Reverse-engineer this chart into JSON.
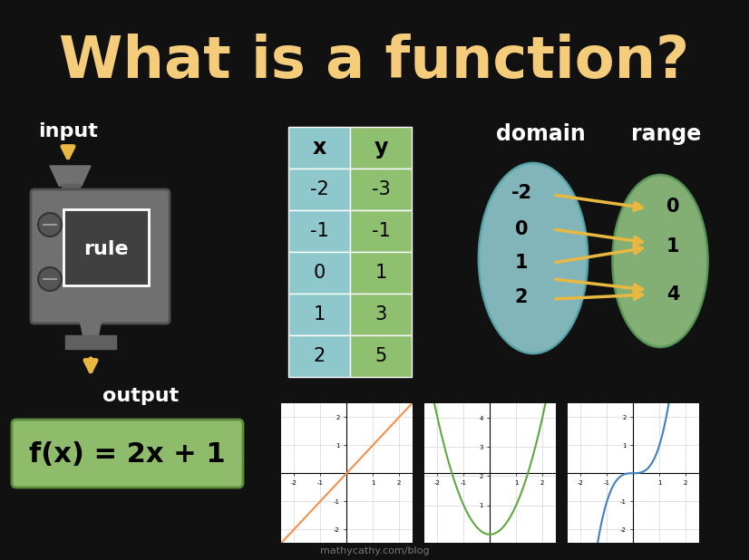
{
  "title": "What is a function?",
  "title_color": "#F5CC7A",
  "bg_color": "#111111",
  "table_x_vals": [
    "-2",
    "-1",
    "0",
    "1",
    "2"
  ],
  "table_y_vals": [
    "-3",
    "-1",
    "1",
    "3",
    "5"
  ],
  "domain_vals": [
    "-2",
    "0",
    "1",
    "2"
  ],
  "range_vals": [
    "0",
    "1",
    "4"
  ],
  "formula": "f(x) = 2x + 1",
  "input_text": "input",
  "output_text": "output",
  "rule_text": "rule",
  "domain_text": "domain",
  "range_text": "range",
  "header_bg": "#8EC8CC",
  "row_bg": "#8EC070",
  "watermark": "mathycathy.com/blog",
  "machine_color": "#808080",
  "formula_bg": "#8FBC6A",
  "arrow_color": "#E8B840",
  "domain_ellipse_color": "#8EC8CC",
  "range_ellipse_color": "#90C080"
}
